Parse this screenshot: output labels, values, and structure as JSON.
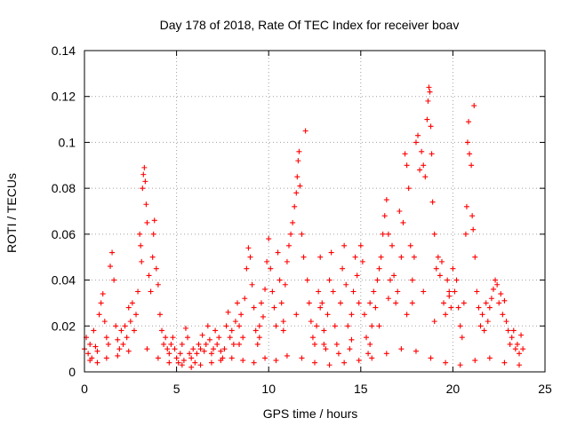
{
  "chart_data": {
    "type": "scatter",
    "title": "Day 178 of 2018, Rate Of TEC Index for receiver boav",
    "xlabel": "GPS time / hours",
    "ylabel": "ROTI / TECUs",
    "xlim": [
      0,
      25
    ],
    "ylim": [
      0,
      0.14
    ],
    "x_ticks": [
      0,
      5,
      10,
      15,
      20,
      25
    ],
    "y_ticks": [
      0,
      0.02,
      0.04,
      0.06,
      0.08,
      0.1,
      0.12,
      0.14
    ],
    "x_tick_labels": [
      "0",
      "5",
      "10",
      "15",
      "20",
      "25"
    ],
    "y_tick_labels": [
      "0",
      "0.02",
      "0.04",
      "0.06",
      "0.08",
      "0.1",
      "0.12",
      "0.14"
    ],
    "grid": true,
    "marker": "+",
    "color": "#ff0000",
    "series": [
      {
        "points": [
          [
            0.0,
            0.01
          ],
          [
            0.1,
            0.015
          ],
          [
            0.2,
            0.008
          ],
          [
            0.3,
            0.012
          ],
          [
            0.4,
            0.006
          ],
          [
            0.5,
            0.018
          ],
          [
            0.6,
            0.011
          ],
          [
            0.7,
            0.009
          ],
          [
            0.8,
            0.025
          ],
          [
            0.9,
            0.03
          ],
          [
            1.0,
            0.034
          ],
          [
            1.1,
            0.022
          ],
          [
            1.2,
            0.015
          ],
          [
            1.3,
            0.012
          ],
          [
            1.4,
            0.046
          ],
          [
            1.5,
            0.052
          ],
          [
            1.6,
            0.04
          ],
          [
            1.7,
            0.02
          ],
          [
            1.8,
            0.014
          ],
          [
            1.9,
            0.01
          ],
          [
            2.0,
            0.018
          ],
          [
            2.1,
            0.012
          ],
          [
            2.2,
            0.02
          ],
          [
            2.3,
            0.015
          ],
          [
            2.4,
            0.028
          ],
          [
            2.5,
            0.022
          ],
          [
            2.6,
            0.03
          ],
          [
            2.7,
            0.018
          ],
          [
            2.8,
            0.025
          ],
          [
            2.9,
            0.035
          ],
          [
            3.0,
            0.06
          ],
          [
            3.05,
            0.055
          ],
          [
            3.1,
            0.048
          ],
          [
            3.15,
            0.08
          ],
          [
            3.2,
            0.086
          ],
          [
            3.25,
            0.089
          ],
          [
            3.3,
            0.083
          ],
          [
            3.35,
            0.073
          ],
          [
            3.4,
            0.065
          ],
          [
            3.5,
            0.042
          ],
          [
            3.6,
            0.035
          ],
          [
            3.7,
            0.05
          ],
          [
            3.75,
            0.06
          ],
          [
            3.8,
            0.066
          ],
          [
            3.9,
            0.045
          ],
          [
            4.0,
            0.038
          ],
          [
            4.1,
            0.025
          ],
          [
            4.2,
            0.018
          ],
          [
            4.3,
            0.012
          ],
          [
            4.4,
            0.015
          ],
          [
            4.5,
            0.01
          ],
          [
            4.6,
            0.008
          ],
          [
            4.7,
            0.012
          ],
          [
            4.8,
            0.015
          ],
          [
            4.9,
            0.01
          ],
          [
            5.0,
            0.006
          ],
          [
            5.1,
            0.004
          ],
          [
            5.2,
            0.008
          ],
          [
            5.3,
            0.012
          ],
          [
            5.4,
            0.005
          ],
          [
            5.5,
            0.019
          ],
          [
            5.6,
            0.015
          ],
          [
            5.7,
            0.008
          ],
          [
            5.8,
            0.006
          ],
          [
            5.9,
            0.01
          ],
          [
            6.0,
            0.004
          ],
          [
            6.1,
            0.008
          ],
          [
            6.2,
            0.012
          ],
          [
            6.3,
            0.01
          ],
          [
            6.4,
            0.016
          ],
          [
            6.5,
            0.009
          ],
          [
            6.6,
            0.012
          ],
          [
            6.7,
            0.02
          ],
          [
            6.8,
            0.014
          ],
          [
            6.9,
            0.008
          ],
          [
            7.0,
            0.01
          ],
          [
            7.1,
            0.018
          ],
          [
            7.2,
            0.012
          ],
          [
            7.3,
            0.015
          ],
          [
            7.4,
            0.009
          ],
          [
            7.5,
            0.006
          ],
          [
            7.6,
            0.01
          ],
          [
            7.7,
            0.02
          ],
          [
            7.8,
            0.026
          ],
          [
            7.9,
            0.015
          ],
          [
            8.0,
            0.018
          ],
          [
            8.1,
            0.012
          ],
          [
            8.2,
            0.022
          ],
          [
            8.3,
            0.03
          ],
          [
            8.4,
            0.02
          ],
          [
            8.5,
            0.025
          ],
          [
            8.6,
            0.015
          ],
          [
            8.7,
            0.032
          ],
          [
            8.8,
            0.045
          ],
          [
            8.9,
            0.054
          ],
          [
            9.0,
            0.05
          ],
          [
            9.1,
            0.038
          ],
          [
            9.2,
            0.028
          ],
          [
            9.3,
            0.018
          ],
          [
            9.4,
            0.012
          ],
          [
            9.5,
            0.02
          ],
          [
            9.6,
            0.03
          ],
          [
            9.7,
            0.024
          ],
          [
            9.8,
            0.036
          ],
          [
            9.9,
            0.048
          ],
          [
            10.0,
            0.058
          ],
          [
            10.1,
            0.045
          ],
          [
            10.2,
            0.035
          ],
          [
            10.3,
            0.028
          ],
          [
            10.4,
            0.02
          ],
          [
            10.5,
            0.052
          ],
          [
            10.6,
            0.04
          ],
          [
            10.7,
            0.03
          ],
          [
            10.8,
            0.022
          ],
          [
            10.9,
            0.038
          ],
          [
            11.0,
            0.048
          ],
          [
            11.1,
            0.055
          ],
          [
            11.2,
            0.06
          ],
          [
            11.3,
            0.065
          ],
          [
            11.4,
            0.072
          ],
          [
            11.5,
            0.078
          ],
          [
            11.55,
            0.085
          ],
          [
            11.6,
            0.092
          ],
          [
            11.65,
            0.096
          ],
          [
            11.7,
            0.081
          ],
          [
            11.8,
            0.06
          ],
          [
            11.9,
            0.05
          ],
          [
            12.0,
            0.105
          ],
          [
            12.1,
            0.04
          ],
          [
            12.2,
            0.03
          ],
          [
            12.3,
            0.022
          ],
          [
            12.4,
            0.015
          ],
          [
            12.5,
            0.012
          ],
          [
            12.6,
            0.02
          ],
          [
            12.7,
            0.035
          ],
          [
            12.8,
            0.05
          ],
          [
            12.9,
            0.03
          ],
          [
            13.0,
            0.018
          ],
          [
            13.1,
            0.01
          ],
          [
            13.2,
            0.025
          ],
          [
            13.3,
            0.04
          ],
          [
            13.4,
            0.052
          ],
          [
            13.5,
            0.035
          ],
          [
            13.6,
            0.02
          ],
          [
            13.7,
            0.012
          ],
          [
            13.8,
            0.008
          ],
          [
            13.9,
            0.03
          ],
          [
            14.0,
            0.045
          ],
          [
            14.1,
            0.055
          ],
          [
            14.2,
            0.038
          ],
          [
            14.3,
            0.02
          ],
          [
            14.4,
            0.01
          ],
          [
            14.5,
            0.025
          ],
          [
            14.6,
            0.035
          ],
          [
            14.7,
            0.05
          ],
          [
            14.8,
            0.042
          ],
          [
            14.9,
            0.03
          ],
          [
            15.0,
            0.055
          ],
          [
            15.1,
            0.048
          ],
          [
            15.2,
            0.025
          ],
          [
            15.3,
            0.015
          ],
          [
            15.4,
            0.008
          ],
          [
            15.5,
            0.012
          ],
          [
            15.6,
            0.02
          ],
          [
            15.7,
            0.035
          ],
          [
            15.8,
            0.028
          ],
          [
            15.9,
            0.04
          ],
          [
            16.0,
            0.045
          ],
          [
            16.1,
            0.05
          ],
          [
            16.2,
            0.06
          ],
          [
            16.3,
            0.068
          ],
          [
            16.4,
            0.075
          ],
          [
            16.5,
            0.06
          ],
          [
            16.6,
            0.04
          ],
          [
            16.7,
            0.055
          ],
          [
            16.8,
            0.042
          ],
          [
            16.9,
            0.03
          ],
          [
            17.0,
            0.035
          ],
          [
            17.1,
            0.07
          ],
          [
            17.2,
            0.05
          ],
          [
            17.3,
            0.065
          ],
          [
            17.4,
            0.095
          ],
          [
            17.5,
            0.09
          ],
          [
            17.6,
            0.08
          ],
          [
            17.7,
            0.055
          ],
          [
            17.8,
            0.04
          ],
          [
            17.9,
            0.05
          ],
          [
            18.0,
            0.1
          ],
          [
            18.1,
            0.103
          ],
          [
            18.2,
            0.088
          ],
          [
            18.3,
            0.096
          ],
          [
            18.4,
            0.09
          ],
          [
            18.5,
            0.085
          ],
          [
            18.6,
            0.11
          ],
          [
            18.65,
            0.118
          ],
          [
            18.7,
            0.124
          ],
          [
            18.75,
            0.122
          ],
          [
            18.8,
            0.107
          ],
          [
            18.85,
            0.095
          ],
          [
            18.9,
            0.074
          ],
          [
            19.0,
            0.06
          ],
          [
            19.1,
            0.045
          ],
          [
            19.2,
            0.05
          ],
          [
            19.3,
            0.042
          ],
          [
            19.4,
            0.048
          ],
          [
            19.5,
            0.03
          ],
          [
            19.6,
            0.025
          ],
          [
            19.7,
            0.04
          ],
          [
            19.8,
            0.035
          ],
          [
            19.9,
            0.028
          ],
          [
            20.0,
            0.045
          ],
          [
            20.1,
            0.035
          ],
          [
            20.2,
            0.04
          ],
          [
            20.3,
            0.028
          ],
          [
            20.4,
            0.02
          ],
          [
            20.5,
            0.015
          ],
          [
            20.6,
            0.03
          ],
          [
            20.7,
            0.06
          ],
          [
            20.75,
            0.072
          ],
          [
            20.8,
            0.1
          ],
          [
            20.85,
            0.109
          ],
          [
            20.9,
            0.095
          ],
          [
            21.0,
            0.09
          ],
          [
            21.05,
            0.068
          ],
          [
            21.1,
            0.062
          ],
          [
            21.15,
            0.116
          ],
          [
            21.2,
            0.05
          ],
          [
            21.3,
            0.035
          ],
          [
            21.4,
            0.028
          ],
          [
            21.5,
            0.02
          ],
          [
            21.6,
            0.025
          ],
          [
            21.7,
            0.018
          ],
          [
            21.8,
            0.03
          ],
          [
            21.9,
            0.022
          ],
          [
            22.0,
            0.028
          ],
          [
            22.1,
            0.032
          ],
          [
            22.2,
            0.036
          ],
          [
            22.3,
            0.04
          ],
          [
            22.4,
            0.038
          ],
          [
            22.5,
            0.03
          ],
          [
            22.6,
            0.034
          ],
          [
            22.7,
            0.025
          ],
          [
            22.8,
            0.031
          ],
          [
            22.9,
            0.022
          ],
          [
            23.0,
            0.018
          ],
          [
            23.1,
            0.012
          ],
          [
            23.2,
            0.015
          ],
          [
            23.3,
            0.018
          ],
          [
            23.4,
            0.01
          ],
          [
            23.5,
            0.012
          ],
          [
            23.6,
            0.008
          ],
          [
            23.7,
            0.016
          ],
          [
            23.8,
            0.01
          ],
          [
            0.3,
            0.005
          ],
          [
            0.7,
            0.004
          ],
          [
            1.2,
            0.006
          ],
          [
            1.8,
            0.007
          ],
          [
            2.4,
            0.009
          ],
          [
            3.4,
            0.01
          ],
          [
            4.0,
            0.006
          ],
          [
            4.6,
            0.004
          ],
          [
            5.3,
            0.003
          ],
          [
            5.8,
            0.002
          ],
          [
            6.3,
            0.003
          ],
          [
            6.9,
            0.004
          ],
          [
            7.4,
            0.005
          ],
          [
            8.0,
            0.006
          ],
          [
            8.6,
            0.005
          ],
          [
            9.2,
            0.004
          ],
          [
            9.8,
            0.006
          ],
          [
            10.4,
            0.005
          ],
          [
            11.0,
            0.007
          ],
          [
            11.8,
            0.006
          ],
          [
            12.5,
            0.004
          ],
          [
            13.3,
            0.003
          ],
          [
            14.1,
            0.004
          ],
          [
            14.9,
            0.005
          ],
          [
            15.6,
            0.006
          ],
          [
            16.4,
            0.008
          ],
          [
            17.2,
            0.01
          ],
          [
            18.0,
            0.009
          ],
          [
            18.8,
            0.006
          ],
          [
            19.6,
            0.004
          ],
          [
            20.4,
            0.003
          ],
          [
            21.2,
            0.005
          ],
          [
            22.0,
            0.006
          ],
          [
            22.8,
            0.004
          ],
          [
            23.6,
            0.003
          ],
          [
            13.0,
            0.012
          ],
          [
            14.5,
            0.014
          ],
          [
            16.0,
            0.02
          ],
          [
            17.5,
            0.025
          ],
          [
            19.0,
            0.022
          ],
          [
            15.5,
            0.03
          ],
          [
            16.5,
            0.032
          ],
          [
            17.8,
            0.03
          ],
          [
            18.4,
            0.035
          ],
          [
            19.8,
            0.033
          ],
          [
            12.8,
            0.028
          ],
          [
            11.5,
            0.025
          ],
          [
            10.8,
            0.018
          ],
          [
            9.5,
            0.015
          ],
          [
            8.4,
            0.012
          ]
        ]
      }
    ]
  }
}
